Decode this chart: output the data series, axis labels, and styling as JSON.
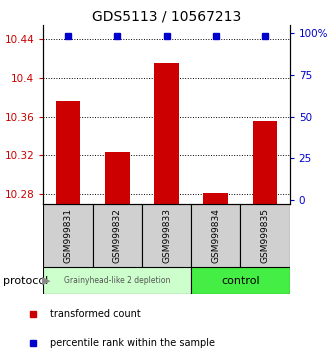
{
  "title": "GDS5113 / 10567213",
  "samples": [
    "GSM999831",
    "GSM999832",
    "GSM999833",
    "GSM999834",
    "GSM999835"
  ],
  "red_values": [
    10.376,
    10.323,
    10.415,
    10.281,
    10.355
  ],
  "blue_values": [
    98,
    98,
    98,
    98,
    98
  ],
  "ylim_left": [
    10.27,
    10.455
  ],
  "ylim_right": [
    -2,
    105
  ],
  "yticks_left": [
    10.28,
    10.32,
    10.36,
    10.4,
    10.44
  ],
  "yticks_right": [
    0,
    25,
    50,
    75,
    100
  ],
  "group1_label": "Grainyhead-like 2 depletion",
  "group2_label": "control",
  "group1_indices": [
    0,
    1,
    2
  ],
  "group2_indices": [
    3,
    4
  ],
  "group1_color": "#ccffcc",
  "group2_color": "#44ee44",
  "protocol_label": "protocol",
  "legend_red": "transformed count",
  "legend_blue": "percentile rank within the sample",
  "bar_color": "#cc0000",
  "dot_color": "#0000cc",
  "bar_bottom": 10.27
}
